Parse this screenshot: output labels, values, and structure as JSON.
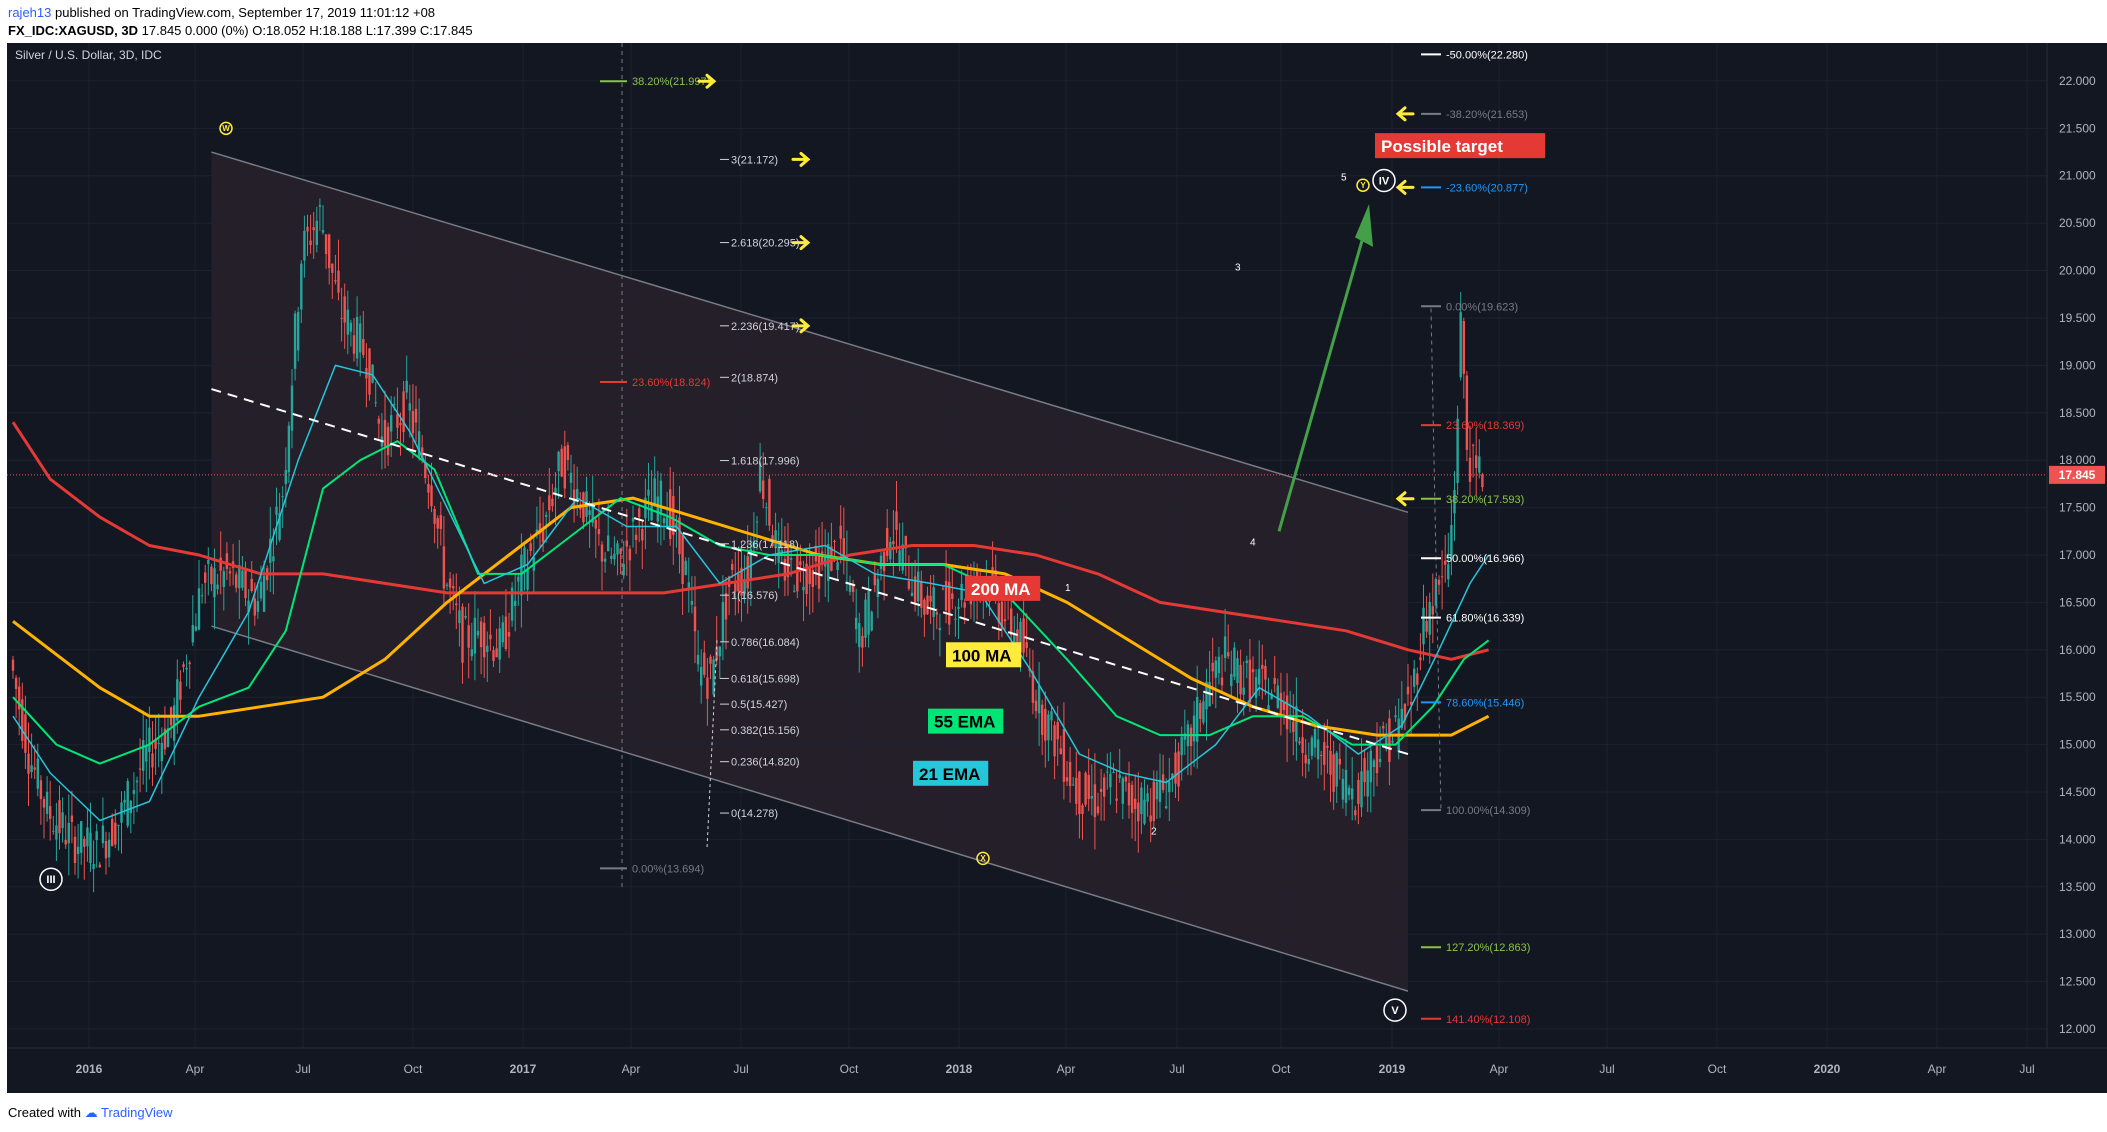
{
  "header": {
    "user": "rajeh13",
    "published": " published on TradingView.com, September 17, 2019 11:01:12 +08",
    "symbol_line": "FX_IDC:XAGUSD, 3D",
    "ohlc": " 17.845 0.000 (0%) O:18.052 H:18.188 L:17.399 C:17.845"
  },
  "footer": {
    "created_with": "Created with",
    "brand": "TradingView"
  },
  "colors": {
    "background": "#131722",
    "candle_up": "#26a69a",
    "candle_down": "#ef5350",
    "ma200": "#e53935",
    "ma100": "#ffb300",
    "ema55": "#00e676",
    "ema21": "#26c6da",
    "arrow": "#43a047",
    "yellow_arrow": "#ffeb3b"
  },
  "chart_data": {
    "type": "candlestick",
    "title": "Silver / U.S. Dollar, 3D, IDC",
    "ylim": [
      11.8,
      22.4
    ],
    "y_ticks": [
      "12.000",
      "12.500",
      "13.000",
      "13.500",
      "14.000",
      "14.500",
      "15.000",
      "15.500",
      "16.000",
      "16.500",
      "17.000",
      "17.500",
      "18.000",
      "18.500",
      "19.000",
      "19.500",
      "20.000",
      "20.500",
      "21.000",
      "21.500",
      "22.000"
    ],
    "x_ticks": [
      "2016",
      "Apr",
      "Jul",
      "Oct",
      "2017",
      "Apr",
      "Jul",
      "Oct",
      "2018",
      "Apr",
      "Jul",
      "Oct",
      "2019",
      "Apr",
      "Jul",
      "Oct",
      "2020",
      "Apr",
      "Jul"
    ],
    "last_price": "17.845",
    "price_path": [
      [
        0,
        15.9
      ],
      [
        6,
        14.9
      ],
      [
        12,
        14.3
      ],
      [
        20,
        14.0
      ],
      [
        28,
        13.9
      ],
      [
        35,
        14.2
      ],
      [
        44,
        14.9
      ],
      [
        52,
        15.2
      ],
      [
        62,
        16.7
      ],
      [
        70,
        16.8
      ],
      [
        80,
        16.5
      ],
      [
        88,
        17.7
      ],
      [
        94,
        20.2
      ],
      [
        100,
        20.6
      ],
      [
        106,
        19.6
      ],
      [
        115,
        19.1
      ],
      [
        120,
        18.2
      ],
      [
        128,
        18.6
      ],
      [
        136,
        17.7
      ],
      [
        140,
        16.8
      ],
      [
        146,
        16.1
      ],
      [
        152,
        16.2
      ],
      [
        158,
        16.0
      ],
      [
        165,
        16.8
      ],
      [
        172,
        17.3
      ],
      [
        178,
        18.0
      ],
      [
        184,
        17.6
      ],
      [
        190,
        17.1
      ],
      [
        196,
        16.9
      ],
      [
        202,
        17.3
      ],
      [
        208,
        17.6
      ],
      [
        212,
        17.5
      ],
      [
        218,
        16.8
      ],
      [
        222,
        15.8
      ],
      [
        226,
        15.7
      ],
      [
        232,
        16.7
      ],
      [
        238,
        16.8
      ],
      [
        242,
        17.9
      ],
      [
        248,
        16.9
      ],
      [
        254,
        16.8
      ],
      [
        262,
        16.9
      ],
      [
        268,
        17.1
      ],
      [
        274,
        16.1
      ],
      [
        280,
        16.8
      ],
      [
        284,
        17.3
      ],
      [
        290,
        16.8
      ],
      [
        296,
        16.4
      ],
      [
        302,
        16.5
      ],
      [
        308,
        16.6
      ],
      [
        314,
        16.8
      ],
      [
        320,
        16.4
      ],
      [
        326,
        16.1
      ],
      [
        332,
        15.4
      ],
      [
        338,
        15.0
      ],
      [
        344,
        14.5
      ],
      [
        350,
        14.4
      ],
      [
        356,
        14.6
      ],
      [
        362,
        14.4
      ],
      [
        368,
        14.4
      ],
      [
        374,
        14.6
      ],
      [
        380,
        15.0
      ],
      [
        386,
        15.6
      ],
      [
        392,
        15.9
      ],
      [
        398,
        15.7
      ],
      [
        404,
        15.6
      ],
      [
        410,
        15.5
      ],
      [
        416,
        15.1
      ],
      [
        422,
        14.9
      ],
      [
        428,
        14.7
      ],
      [
        434,
        14.5
      ],
      [
        440,
        14.9
      ],
      [
        446,
        15.1
      ],
      [
        452,
        15.5
      ],
      [
        456,
        16.3
      ],
      [
        460,
        16.6
      ],
      [
        464,
        16.9
      ],
      [
        466,
        17.8
      ],
      [
        468,
        19.5
      ],
      [
        470,
        18.1
      ],
      [
        472,
        17.9
      ],
      [
        474,
        17.845
      ]
    ],
    "series": [
      {
        "name": "200 MA",
        "points": [
          [
            0,
            18.4
          ],
          [
            12,
            17.8
          ],
          [
            28,
            17.4
          ],
          [
            44,
            17.1
          ],
          [
            60,
            17.0
          ],
          [
            80,
            16.8
          ],
          [
            100,
            16.8
          ],
          [
            120,
            16.7
          ],
          [
            140,
            16.6
          ],
          [
            160,
            16.6
          ],
          [
            190,
            16.6
          ],
          [
            210,
            16.6
          ],
          [
            230,
            16.7
          ],
          [
            250,
            16.8
          ],
          [
            270,
            17.0
          ],
          [
            290,
            17.1
          ],
          [
            310,
            17.1
          ],
          [
            330,
            17.0
          ],
          [
            350,
            16.8
          ],
          [
            370,
            16.5
          ],
          [
            390,
            16.4
          ],
          [
            410,
            16.3
          ],
          [
            430,
            16.2
          ],
          [
            450,
            16.0
          ],
          [
            464,
            15.9
          ],
          [
            476,
            16.0
          ]
        ]
      },
      {
        "name": "100 MA",
        "points": [
          [
            0,
            16.3
          ],
          [
            12,
            16.0
          ],
          [
            28,
            15.6
          ],
          [
            44,
            15.3
          ],
          [
            60,
            15.3
          ],
          [
            80,
            15.4
          ],
          [
            100,
            15.5
          ],
          [
            120,
            15.9
          ],
          [
            140,
            16.5
          ],
          [
            160,
            17.0
          ],
          [
            180,
            17.5
          ],
          [
            200,
            17.6
          ],
          [
            220,
            17.4
          ],
          [
            240,
            17.2
          ],
          [
            260,
            17.0
          ],
          [
            280,
            16.9
          ],
          [
            300,
            16.9
          ],
          [
            320,
            16.8
          ],
          [
            340,
            16.5
          ],
          [
            360,
            16.1
          ],
          [
            380,
            15.7
          ],
          [
            400,
            15.4
          ],
          [
            420,
            15.2
          ],
          [
            440,
            15.1
          ],
          [
            455,
            15.1
          ],
          [
            464,
            15.1
          ],
          [
            476,
            15.3
          ]
        ]
      },
      {
        "name": "55 EMA",
        "points": [
          [
            0,
            15.5
          ],
          [
            14,
            15.0
          ],
          [
            28,
            14.8
          ],
          [
            44,
            15.0
          ],
          [
            60,
            15.4
          ],
          [
            76,
            15.6
          ],
          [
            88,
            16.2
          ],
          [
            100,
            17.7
          ],
          [
            112,
            18.0
          ],
          [
            124,
            18.2
          ],
          [
            136,
            17.9
          ],
          [
            150,
            16.8
          ],
          [
            164,
            16.8
          ],
          [
            180,
            17.2
          ],
          [
            196,
            17.6
          ],
          [
            212,
            17.4
          ],
          [
            228,
            17.1
          ],
          [
            244,
            17.0
          ],
          [
            260,
            17.0
          ],
          [
            280,
            16.9
          ],
          [
            300,
            16.9
          ],
          [
            320,
            16.6
          ],
          [
            340,
            15.9
          ],
          [
            356,
            15.3
          ],
          [
            370,
            15.1
          ],
          [
            386,
            15.1
          ],
          [
            400,
            15.3
          ],
          [
            416,
            15.3
          ],
          [
            432,
            15.0
          ],
          [
            446,
            15.0
          ],
          [
            458,
            15.4
          ],
          [
            468,
            15.9
          ],
          [
            476,
            16.1
          ]
        ]
      },
      {
        "name": "21 EMA",
        "points": [
          [
            0,
            15.3
          ],
          [
            12,
            14.7
          ],
          [
            28,
            14.2
          ],
          [
            44,
            14.4
          ],
          [
            60,
            15.5
          ],
          [
            76,
            16.4
          ],
          [
            92,
            18.0
          ],
          [
            104,
            19.0
          ],
          [
            116,
            18.9
          ],
          [
            128,
            18.3
          ],
          [
            140,
            17.5
          ],
          [
            152,
            16.7
          ],
          [
            166,
            16.9
          ],
          [
            182,
            17.6
          ],
          [
            198,
            17.3
          ],
          [
            214,
            17.3
          ],
          [
            228,
            16.7
          ],
          [
            244,
            17.0
          ],
          [
            262,
            17.1
          ],
          [
            278,
            16.8
          ],
          [
            296,
            16.7
          ],
          [
            312,
            16.6
          ],
          [
            328,
            15.8
          ],
          [
            344,
            14.9
          ],
          [
            358,
            14.7
          ],
          [
            372,
            14.6
          ],
          [
            388,
            15.0
          ],
          [
            402,
            15.6
          ],
          [
            418,
            15.3
          ],
          [
            434,
            14.9
          ],
          [
            448,
            15.2
          ],
          [
            460,
            16.0
          ],
          [
            470,
            16.7
          ],
          [
            476,
            17.0
          ]
        ]
      }
    ],
    "fib_levels": [
      {
        "label": "-50.00%(22.280)",
        "price": 22.28
      },
      {
        "label": "-38.20%(21.653)",
        "price": 21.653
      },
      {
        "label": "-23.60%(20.877)",
        "price": 20.877
      },
      {
        "label": "0.00%(19.623)",
        "price": 19.623
      },
      {
        "label": "23.60%(18.369)",
        "price": 18.369
      },
      {
        "label": "38.20%(17.593)",
        "price": 17.593
      },
      {
        "label": "50.00%(16.966)",
        "price": 16.966
      },
      {
        "label": "61.80%(16.339)",
        "price": 16.339
      },
      {
        "label": "78.60%(15.446)",
        "price": 15.446
      },
      {
        "label": "100.00%(14.309)",
        "price": 14.309
      },
      {
        "label": "127.20%(12.863)",
        "price": 12.863
      },
      {
        "label": "141.40%(12.108)",
        "price": 12.108
      }
    ],
    "fib_mid": [
      {
        "label": "38.20%(21.997)",
        "price": 21.997
      },
      {
        "label": "23.60%(18.824)",
        "price": 18.824
      },
      {
        "label": "0.00%(13.694)",
        "price": 13.694
      }
    ],
    "ext_levels": [
      {
        "label": "3(21.172)",
        "price": 21.172
      },
      {
        "label": "2.618(20.295)",
        "price": 20.295
      },
      {
        "label": "2.236(19.417)",
        "price": 19.417
      },
      {
        "label": "2(18.874)",
        "price": 18.874
      },
      {
        "label": "1.618(17.996)",
        "price": 17.996
      },
      {
        "label": "1.236(17.118)",
        "price": 17.118
      },
      {
        "label": "1(16.576)",
        "price": 16.576
      },
      {
        "label": "0.786(16.084)",
        "price": 16.084
      },
      {
        "label": "0.618(15.698)",
        "price": 15.698
      },
      {
        "label": "0.5(15.427)",
        "price": 15.427
      },
      {
        "label": "0.382(15.156)",
        "price": 15.156
      },
      {
        "label": "0.236(14.820)",
        "price": 14.82
      },
      {
        "label": "0(14.278)",
        "price": 14.278
      }
    ],
    "annotations": {
      "ma200_label": "200 MA",
      "ma100_label": "100 MA",
      "ema55_label": "55 EMA",
      "ema21_label": "21 EMA",
      "target_label": "Possible target",
      "wave_W": "W",
      "wave_X": "X",
      "wave_Y": "Y",
      "wave_III": "III",
      "wave_IV": "IV",
      "wave_V": "V",
      "count_1": "1",
      "count_2": "2",
      "count_3": "3",
      "count_4": "4",
      "count_5": "5"
    }
  }
}
